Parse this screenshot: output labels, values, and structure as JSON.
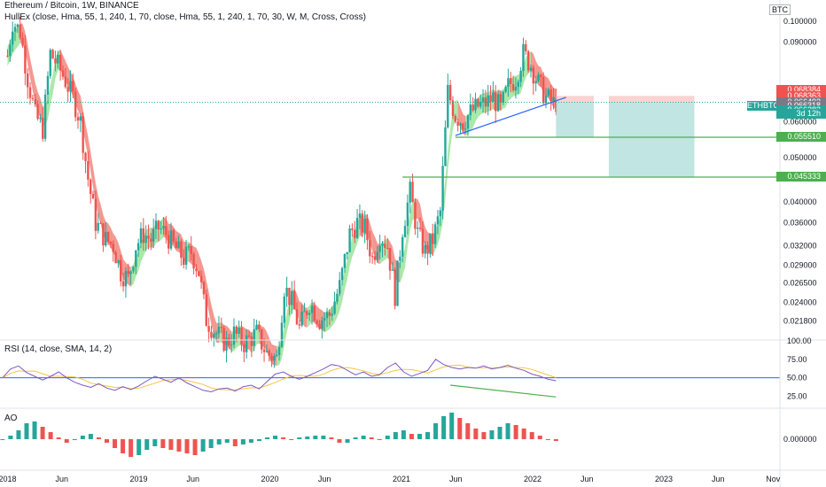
{
  "header": {
    "title": "Ethereum / Bitcoin, 1W, BINANCE",
    "indicator": "HullEx (close, Hma, 55, 1, 240, 1, 70, close, Hma, 55, 1, 240, 1, 70, 30, W, M, Cross, Cross)",
    "currency": "BTC",
    "rsi_title": "RSI (14, close, SMA, 14, 2)",
    "ao_title": "AO"
  },
  "price_labels": [
    {
      "text": "0.068384",
      "color": "#ef5350"
    },
    {
      "text": "0.068363",
      "color": "#ef5350"
    },
    {
      "text": "0.066492",
      "color": "#787b86"
    },
    {
      "text": "0.066318",
      "color": "#787b86"
    },
    {
      "text": "0.066283",
      "color": "#26a69a"
    },
    {
      "text": "3d 12h",
      "color": "#26a69a"
    },
    {
      "text": "0.055510",
      "color": "#4caf50"
    },
    {
      "text": "0.045333",
      "color": "#4caf50"
    }
  ],
  "symbol_tag": "ETHBTC",
  "chart_data": {
    "type": "candlestick",
    "title": "Ethereum / Bitcoin, 1W, BINANCE",
    "ylabel": "BTC",
    "y_scale": "log",
    "ylim": [
      0.0199,
      0.1115
    ],
    "y_ticks": [
      "0.100000",
      "0.090000",
      "0.060000",
      "0.050000",
      "0.040000",
      "0.036000",
      "0.032000",
      "0.029000",
      "0.026500",
      "0.024000",
      "0.021800"
    ],
    "x_ticks": [
      "2018",
      "Jun",
      "2019",
      "Jun",
      "2020",
      "Jun",
      "2021",
      "Jun",
      "2022",
      "Jun",
      "2023",
      "Jun",
      "Nov"
    ],
    "close_path": [
      [
        "2018-01-01",
        0.084
      ],
      [
        "2018-01-15",
        0.1
      ],
      [
        "2018-02-05",
        0.095
      ],
      [
        "2018-02-26",
        0.075
      ],
      [
        "2018-03-19",
        0.062
      ],
      [
        "2018-04-09",
        0.058
      ],
      [
        "2018-04-30",
        0.085
      ],
      [
        "2018-05-21",
        0.08
      ],
      [
        "2018-06-11",
        0.074
      ],
      [
        "2018-07-02",
        0.068
      ],
      [
        "2018-07-23",
        0.06
      ],
      [
        "2018-08-13",
        0.045
      ],
      [
        "2018-09-03",
        0.036
      ],
      [
        "2018-10-01",
        0.033
      ],
      [
        "2018-10-22",
        0.032
      ],
      [
        "2018-11-12",
        0.028
      ],
      [
        "2018-12-03",
        0.027
      ],
      [
        "2018-12-24",
        0.032
      ],
      [
        "2019-01-14",
        0.034
      ],
      [
        "2019-02-04",
        0.033
      ],
      [
        "2019-02-25",
        0.035
      ],
      [
        "2019-03-18",
        0.034
      ],
      [
        "2019-04-08",
        0.032
      ],
      [
        "2019-05-06",
        0.03
      ],
      [
        "2019-05-27",
        0.031
      ],
      [
        "2019-06-17",
        0.028
      ],
      [
        "2019-07-08",
        0.022
      ],
      [
        "2019-08-05",
        0.0205
      ],
      [
        "2019-09-02",
        0.0195
      ],
      [
        "2019-09-23",
        0.0205
      ],
      [
        "2019-10-21",
        0.0195
      ],
      [
        "2019-11-25",
        0.0205
      ],
      [
        "2019-12-23",
        0.0185
      ],
      [
        "2020-01-20",
        0.018
      ],
      [
        "2020-02-10",
        0.026
      ],
      [
        "2020-03-02",
        0.024
      ],
      [
        "2020-03-23",
        0.021
      ],
      [
        "2020-04-20",
        0.024
      ],
      [
        "2020-05-18",
        0.022
      ],
      [
        "2020-06-15",
        0.0225
      ],
      [
        "2020-07-13",
        0.026
      ],
      [
        "2020-08-10",
        0.034
      ],
      [
        "2020-08-31",
        0.036
      ],
      [
        "2020-09-21",
        0.035
      ],
      [
        "2020-10-12",
        0.03
      ],
      [
        "2020-11-02",
        0.034
      ],
      [
        "2020-11-23",
        0.032
      ],
      [
        "2020-12-14",
        0.025
      ],
      [
        "2021-01-04",
        0.035
      ],
      [
        "2021-01-25",
        0.042
      ],
      [
        "2021-02-15",
        0.034
      ],
      [
        "2021-03-08",
        0.031
      ],
      [
        "2021-03-29",
        0.033
      ],
      [
        "2021-04-19",
        0.038
      ],
      [
        "2021-05-10",
        0.07
      ],
      [
        "2021-05-31",
        0.062
      ],
      [
        "2021-06-21",
        0.06
      ],
      [
        "2021-07-12",
        0.063
      ],
      [
        "2021-08-02",
        0.065
      ],
      [
        "2021-08-23",
        0.066
      ],
      [
        "2021-09-13",
        0.068
      ],
      [
        "2021-10-04",
        0.064
      ],
      [
        "2021-10-25",
        0.072
      ],
      [
        "2021-11-15",
        0.075
      ],
      [
        "2021-12-06",
        0.085
      ],
      [
        "2021-12-27",
        0.08
      ],
      [
        "2022-01-17",
        0.073
      ],
      [
        "2022-02-07",
        0.068
      ],
      [
        "2022-02-28",
        0.066
      ],
      [
        "2022-03-07",
        0.0663
      ]
    ],
    "levels": [
      0.05551,
      0.045333
    ],
    "rsi": {
      "ylim": [
        10,
        100
      ],
      "y_ticks": [
        "100.00",
        "75.00",
        "50.00",
        "25.00"
      ],
      "midline": 50,
      "values": [
        50,
        62,
        66,
        57,
        52,
        47,
        52,
        58,
        50,
        44,
        40,
        37,
        42,
        36,
        33,
        38,
        34,
        39,
        46,
        52,
        48,
        44,
        50,
        43,
        38,
        33,
        31,
        35,
        36,
        32,
        38,
        40,
        35,
        45,
        55,
        58,
        52,
        48,
        52,
        57,
        62,
        68,
        66,
        60,
        54,
        58,
        52,
        54,
        64,
        70,
        58,
        52,
        56,
        60,
        75,
        68,
        64,
        62,
        64,
        63,
        66,
        62,
        64,
        67,
        63,
        60,
        55,
        52,
        48,
        46
      ]
    },
    "ao": {
      "y_ticks": [
        "0.000000"
      ],
      "values": [
        0.0,
        0.002,
        0.005,
        0.009,
        0.01,
        0.007,
        0.004,
        0.001,
        -0.002,
        0.0,
        0.002,
        0.003,
        0.001,
        -0.002,
        -0.005,
        -0.008,
        -0.01,
        -0.009,
        -0.006,
        -0.004,
        -0.005,
        -0.006,
        -0.007,
        -0.008,
        -0.009,
        -0.007,
        -0.005,
        -0.003,
        -0.002,
        -0.004,
        -0.003,
        -0.002,
        -0.001,
        0.001,
        0.002,
        0.001,
        0.0,
        0.001,
        0.0015,
        0.002,
        0.002,
        0.001,
        -0.002,
        -0.002,
        0.001,
        0.002,
        0.001,
        0.0,
        0.002,
        0.004,
        0.005,
        0.003,
        0.003,
        0.004,
        0.009,
        0.013,
        0.015,
        0.012,
        0.009,
        0.006,
        0.004,
        0.005,
        0.007,
        0.009,
        0.008,
        0.006,
        0.004,
        0.002,
        0.0,
        -0.001
      ]
    }
  }
}
